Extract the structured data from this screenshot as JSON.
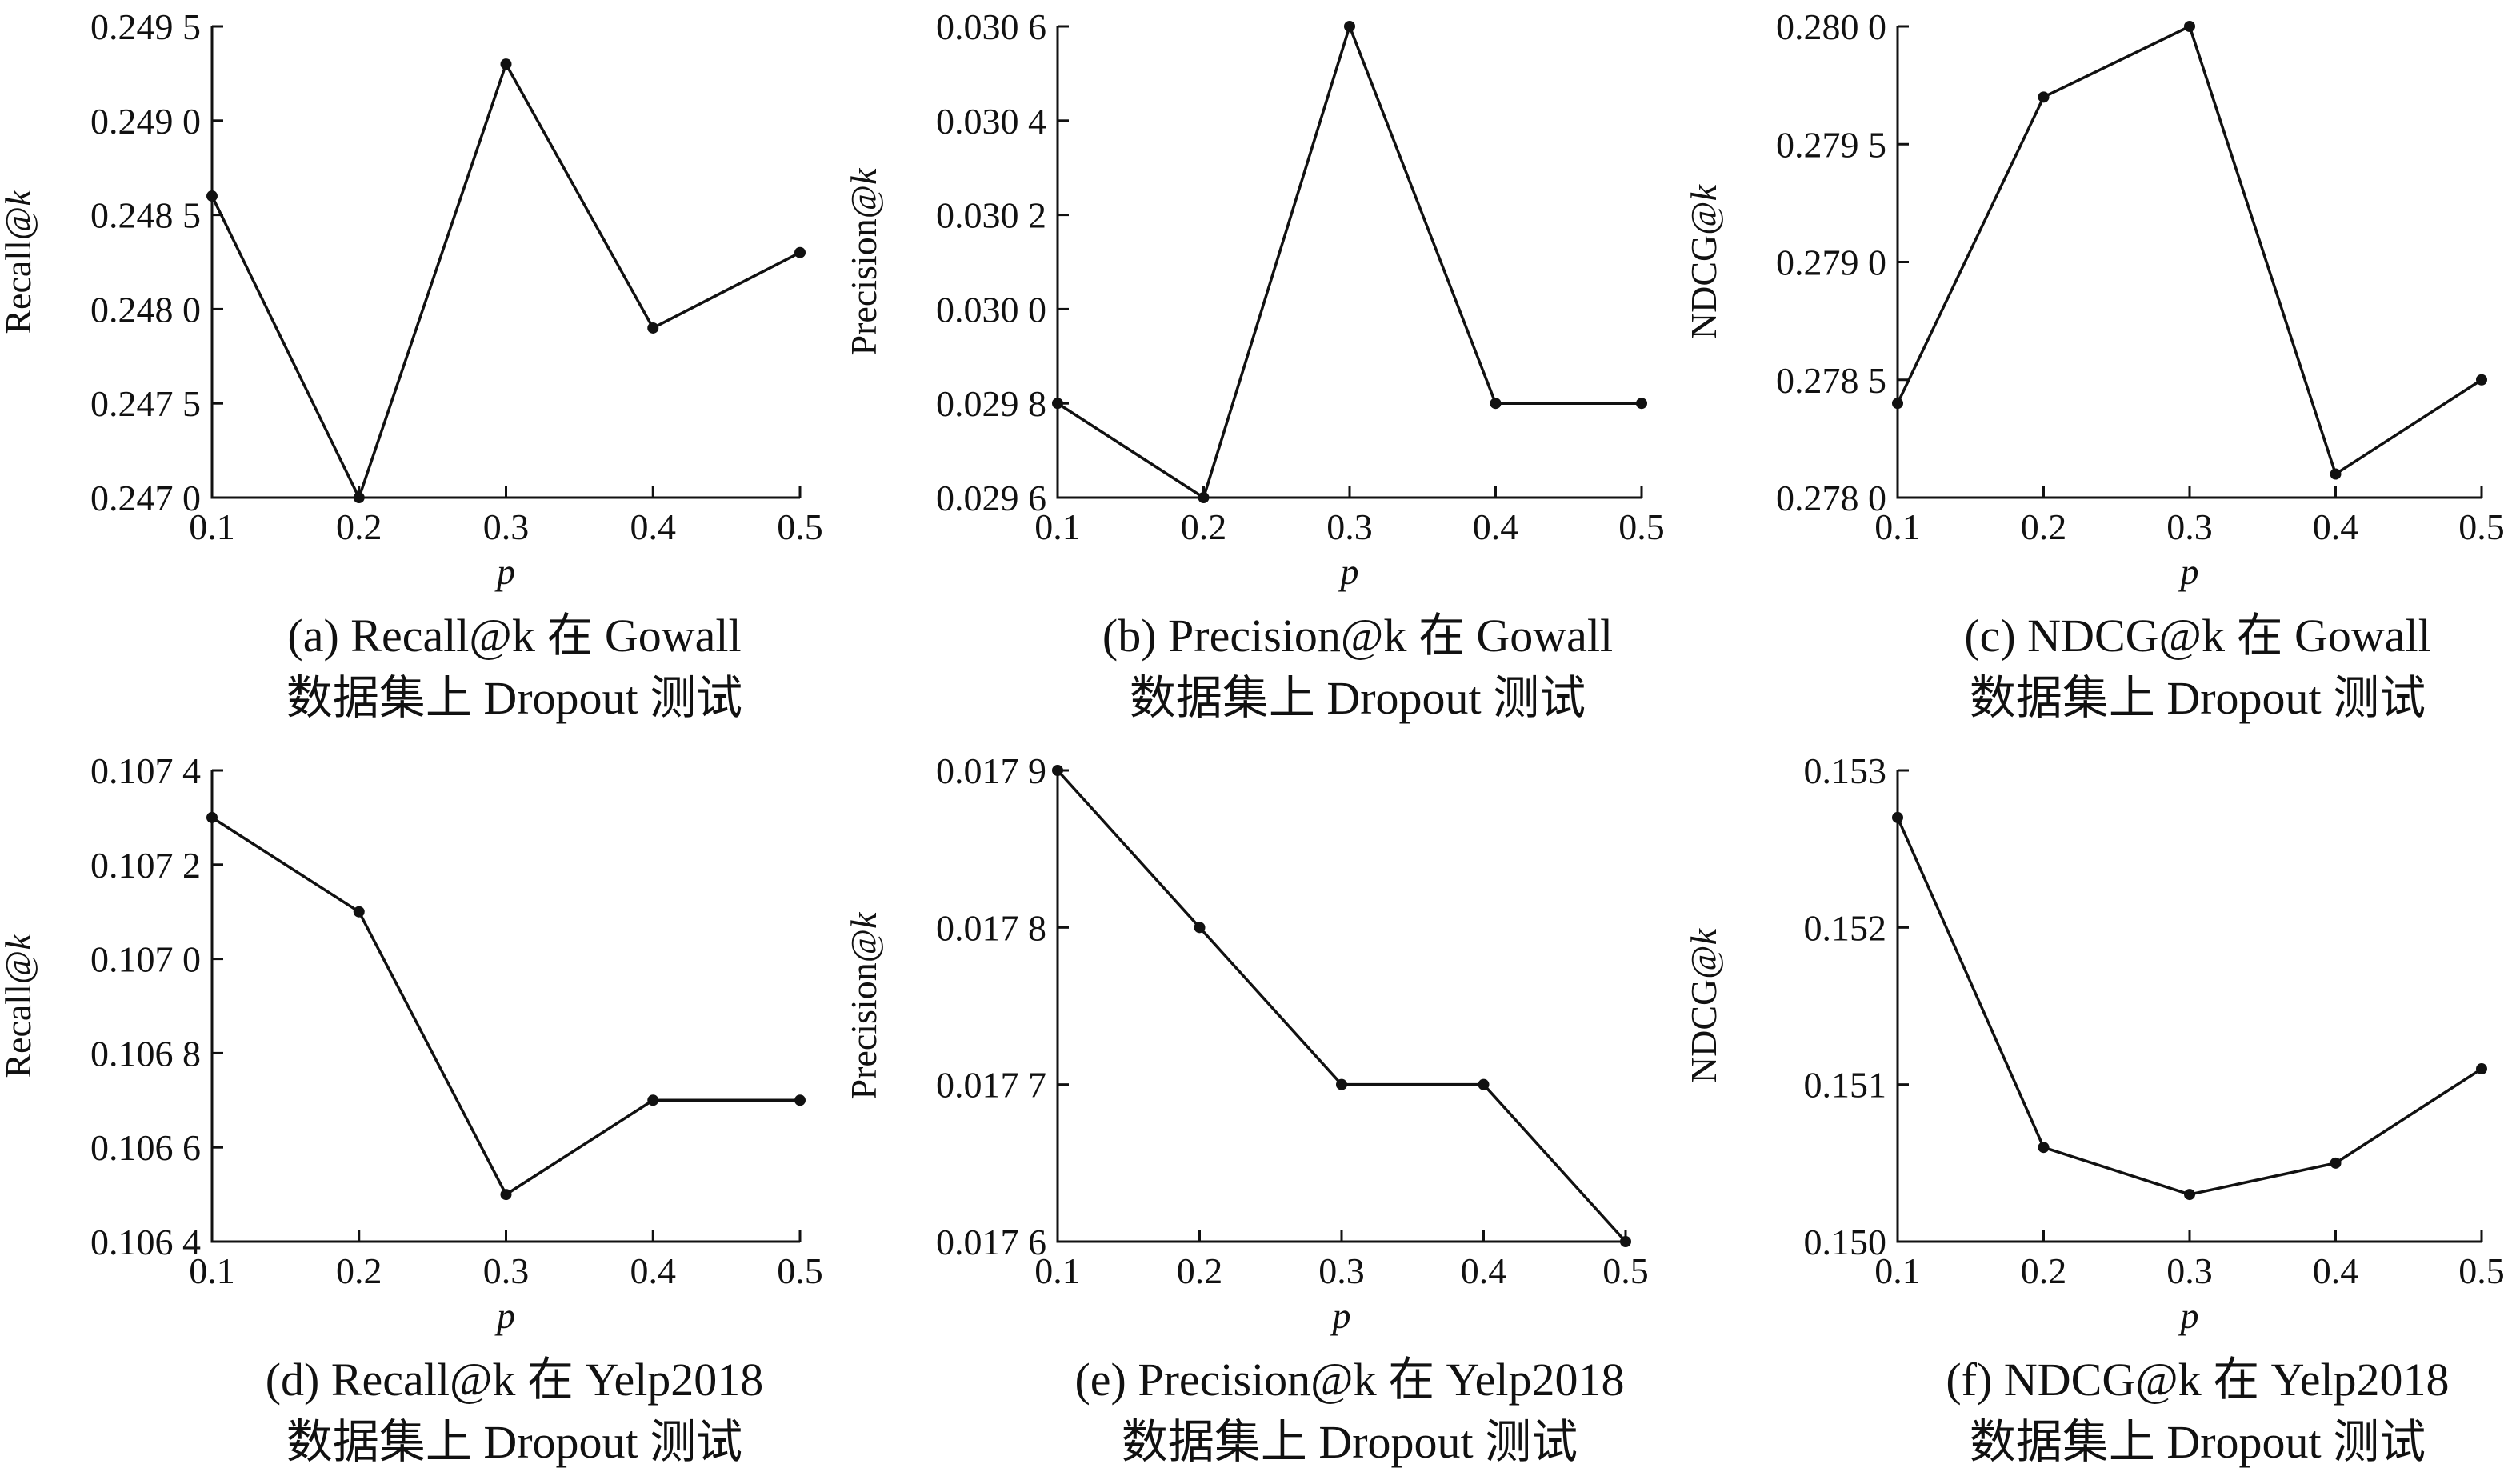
{
  "chart_data": [
    {
      "type": "line",
      "xlabel": "p",
      "ylabel": "Recall@k",
      "x": [
        0.1,
        0.2,
        0.3,
        0.4,
        0.5
      ],
      "xticks": [
        "0.1",
        "0.2",
        "0.3",
        "0.4",
        "0.5"
      ],
      "xlim": [
        0.1,
        0.5
      ],
      "series": [
        {
          "values": [
            0.2486,
            0.247,
            0.2493,
            0.2479,
            0.2483
          ]
        }
      ],
      "ylim": [
        0.247,
        0.2495
      ],
      "yticks": [
        0.247,
        0.2475,
        0.248,
        0.2485,
        0.249,
        0.2495
      ],
      "ytick_labels": [
        "0.247 0",
        "0.247 5",
        "0.248 0",
        "0.248 5",
        "0.249 0",
        "0.249 5"
      ],
      "caption": [
        "(a) Recall@k 在 Gowall",
        "数据集上 Dropout 测试"
      ]
    },
    {
      "type": "line",
      "xlabel": "p",
      "ylabel": "Precision@k",
      "x": [
        0.1,
        0.2,
        0.3,
        0.4,
        0.5
      ],
      "xticks": [
        "0.1",
        "0.2",
        "0.3",
        "0.4",
        "0.5"
      ],
      "xlim": [
        0.1,
        0.5
      ],
      "series": [
        {
          "values": [
            0.0298,
            0.0296,
            0.0306,
            0.0298,
            0.0298
          ]
        }
      ],
      "ylim": [
        0.0296,
        0.0306
      ],
      "yticks": [
        0.0296,
        0.0298,
        0.03,
        0.0302,
        0.0304,
        0.0306
      ],
      "ytick_labels": [
        "0.029 6",
        "0.029 8",
        "0.030 0",
        "0.030 2",
        "0.030 4",
        "0.030 6"
      ],
      "caption": [
        "(b) Precision@k 在 Gowall",
        "数据集上 Dropout 测试"
      ]
    },
    {
      "type": "line",
      "xlabel": "p",
      "ylabel": "NDCG@k",
      "x": [
        0.1,
        0.2,
        0.3,
        0.4,
        0.5
      ],
      "xticks": [
        "0.1",
        "0.2",
        "0.3",
        "0.4",
        "0.5"
      ],
      "xlim": [
        0.1,
        0.5
      ],
      "series": [
        {
          "values": [
            0.2784,
            0.2797,
            0.28,
            0.2781,
            0.2785
          ]
        }
      ],
      "ylim": [
        0.278,
        0.28
      ],
      "yticks": [
        0.278,
        0.2785,
        0.279,
        0.2795,
        0.28
      ],
      "ytick_labels": [
        "0.278 0",
        "0.278 5",
        "0.279 0",
        "0.279 5",
        "0.280 0"
      ],
      "caption": [
        "(c) NDCG@k 在 Gowall",
        "数据集上 Dropout 测试"
      ]
    },
    {
      "type": "line",
      "xlabel": "p",
      "ylabel": "Recall@k",
      "x": [
        0.1,
        0.2,
        0.3,
        0.4,
        0.5
      ],
      "xticks": [
        "0.1",
        "0.2",
        "0.3",
        "0.4",
        "0.5"
      ],
      "xlim": [
        0.1,
        0.5
      ],
      "series": [
        {
          "values": [
            0.1073,
            0.1071,
            0.1065,
            0.1067,
            0.1067
          ]
        }
      ],
      "ylim": [
        0.1064,
        0.1074
      ],
      "yticks": [
        0.1064,
        0.1066,
        0.1068,
        0.107,
        0.1072,
        0.1074
      ],
      "ytick_labels": [
        "0.106 4",
        "0.106 6",
        "0.106 8",
        "0.107 0",
        "0.107 2",
        "0.107 4"
      ],
      "caption": [
        "(d) Recall@k 在 Yelp2018",
        "数据集上 Dropout 测试"
      ]
    },
    {
      "type": "line",
      "xlabel": "p",
      "ylabel": "Precision@k",
      "x": [
        0.1,
        0.2,
        0.3,
        0.4,
        0.5
      ],
      "xticks": [
        "0.1",
        "0.2",
        "0.3",
        "0.4",
        "0.5"
      ],
      "xlim": [
        0.1,
        0.5
      ],
      "series": [
        {
          "values": [
            0.0179,
            0.0178,
            0.0177,
            0.0177,
            0.0176
          ]
        }
      ],
      "ylim": [
        0.0176,
        0.0179
      ],
      "yticks": [
        0.0176,
        0.0177,
        0.0178,
        0.0179
      ],
      "ytick_labels": [
        "0.017 6",
        "0.017 7",
        "0.017 8",
        "0.017 9"
      ],
      "caption": [
        "(e) Precision@k 在 Yelp2018",
        "数据集上 Dropout 测试"
      ]
    },
    {
      "type": "line",
      "xlabel": "p",
      "ylabel": "NDCG@k",
      "x": [
        0.1,
        0.2,
        0.3,
        0.4,
        0.5
      ],
      "xticks": [
        "0.1",
        "0.2",
        "0.3",
        "0.4",
        "0.5"
      ],
      "xlim": [
        0.1,
        0.5
      ],
      "series": [
        {
          "values": [
            0.1527,
            0.1506,
            0.1503,
            0.1505,
            0.1511
          ]
        }
      ],
      "ylim": [
        0.15,
        0.153
      ],
      "yticks": [
        0.15,
        0.151,
        0.152,
        0.153
      ],
      "ytick_labels": [
        "0.150",
        "0.151",
        "0.152",
        "0.153"
      ],
      "caption": [
        "(f) NDCG@k 在 Yelp2018",
        "数据集上 Dropout 测试"
      ]
    }
  ]
}
